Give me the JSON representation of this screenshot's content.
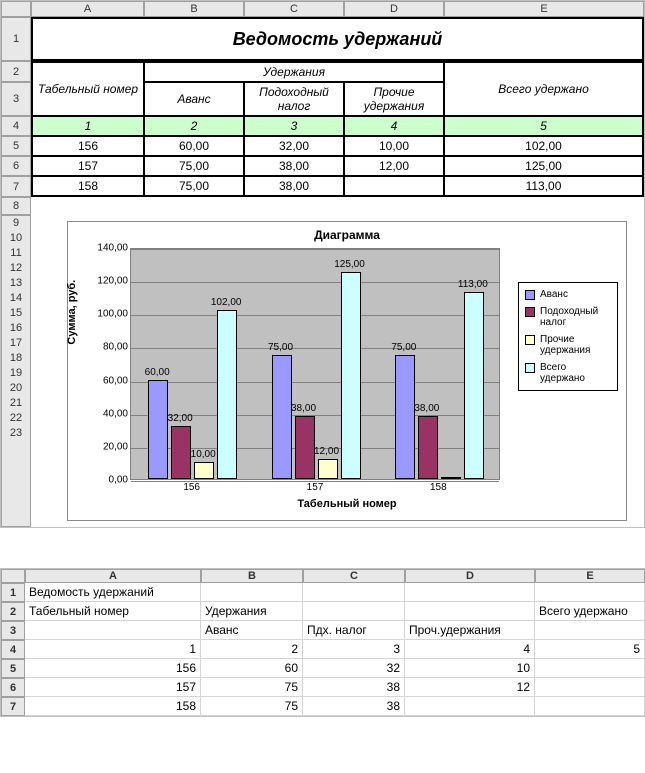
{
  "sheet1": {
    "col_headers": [
      "A",
      "B",
      "C",
      "D",
      "E"
    ],
    "row_headers": [
      "1",
      "2",
      "3",
      "4",
      "5",
      "6",
      "7",
      "8",
      "9",
      "10",
      "11",
      "12",
      "13",
      "14",
      "15",
      "16",
      "17",
      "18",
      "19",
      "20",
      "21",
      "22",
      "23"
    ],
    "title": "Ведомость удержаний",
    "header_personnel": "Табельный номер",
    "header_deductions": "Удержания",
    "header_total": "Всего удержано",
    "sub_advance": "Аванс",
    "sub_tax": "Подоходный налог",
    "sub_other": "Прочие удержания",
    "idx_row": {
      "a": "1",
      "b": "2",
      "c": "3",
      "d": "4",
      "e": "5"
    },
    "rows": [
      {
        "num": "156",
        "adv": "60,00",
        "tax": "32,00",
        "other": "10,00",
        "total": "102,00"
      },
      {
        "num": "157",
        "adv": "75,00",
        "tax": "38,00",
        "other": "12,00",
        "total": "125,00"
      },
      {
        "num": "158",
        "adv": "75,00",
        "tax": "38,00",
        "other": "",
        "total": "113,00"
      }
    ]
  },
  "chart": {
    "title": "Диаграмма",
    "type": "bar",
    "ytitle": "Сумма, руб.",
    "xtitle": "Табельный номер",
    "ylim": [
      0,
      140
    ],
    "ytick_step": 20,
    "yticks": [
      "0,00",
      "20,00",
      "40,00",
      "60,00",
      "80,00",
      "100,00",
      "120,00",
      "140,00"
    ],
    "categories": [
      "156",
      "157",
      "158"
    ],
    "series": [
      {
        "name": "Аванс",
        "color": "#9999ff",
        "values": [
          60,
          75,
          75
        ],
        "labels": [
          "60,00",
          "75,00",
          "75,00"
        ]
      },
      {
        "name": "Подоходный налог",
        "color": "#993366",
        "values": [
          32,
          38,
          38
        ],
        "labels": [
          "32,00",
          "38,00",
          "38,00"
        ]
      },
      {
        "name": "Прочие удержания",
        "color": "#ffffcc",
        "values": [
          10,
          12,
          0
        ],
        "labels": [
          "10,00",
          "12,00",
          ""
        ]
      },
      {
        "name": "Всего удержано",
        "color": "#ccffff",
        "values": [
          102,
          125,
          113
        ],
        "labels": [
          "102,00",
          "125,00",
          "113,00"
        ]
      }
    ],
    "plot_bg": "#c0c0c0",
    "grid_color": "#808080"
  },
  "sheet2": {
    "col_headers": [
      "A",
      "B",
      "C",
      "D",
      "E"
    ],
    "row_headers": [
      "1",
      "2",
      "3",
      "4",
      "5",
      "6",
      "7"
    ],
    "rows": [
      [
        "Ведомость удержаний",
        "",
        "",
        "",
        ""
      ],
      [
        "Табельный номер",
        "Удержания",
        "",
        "",
        "Всего удержано"
      ],
      [
        "",
        "Аванс",
        "Пдх. налог",
        "Проч.удержания",
        ""
      ],
      [
        "1",
        "2",
        "3",
        "4",
        "5"
      ],
      [
        "156",
        "60",
        "32",
        "10",
        ""
      ],
      [
        "157",
        "75",
        "38",
        "12",
        ""
      ],
      [
        "158",
        "75",
        "38",
        "",
        ""
      ]
    ],
    "numeric_rows_start": 3
  }
}
